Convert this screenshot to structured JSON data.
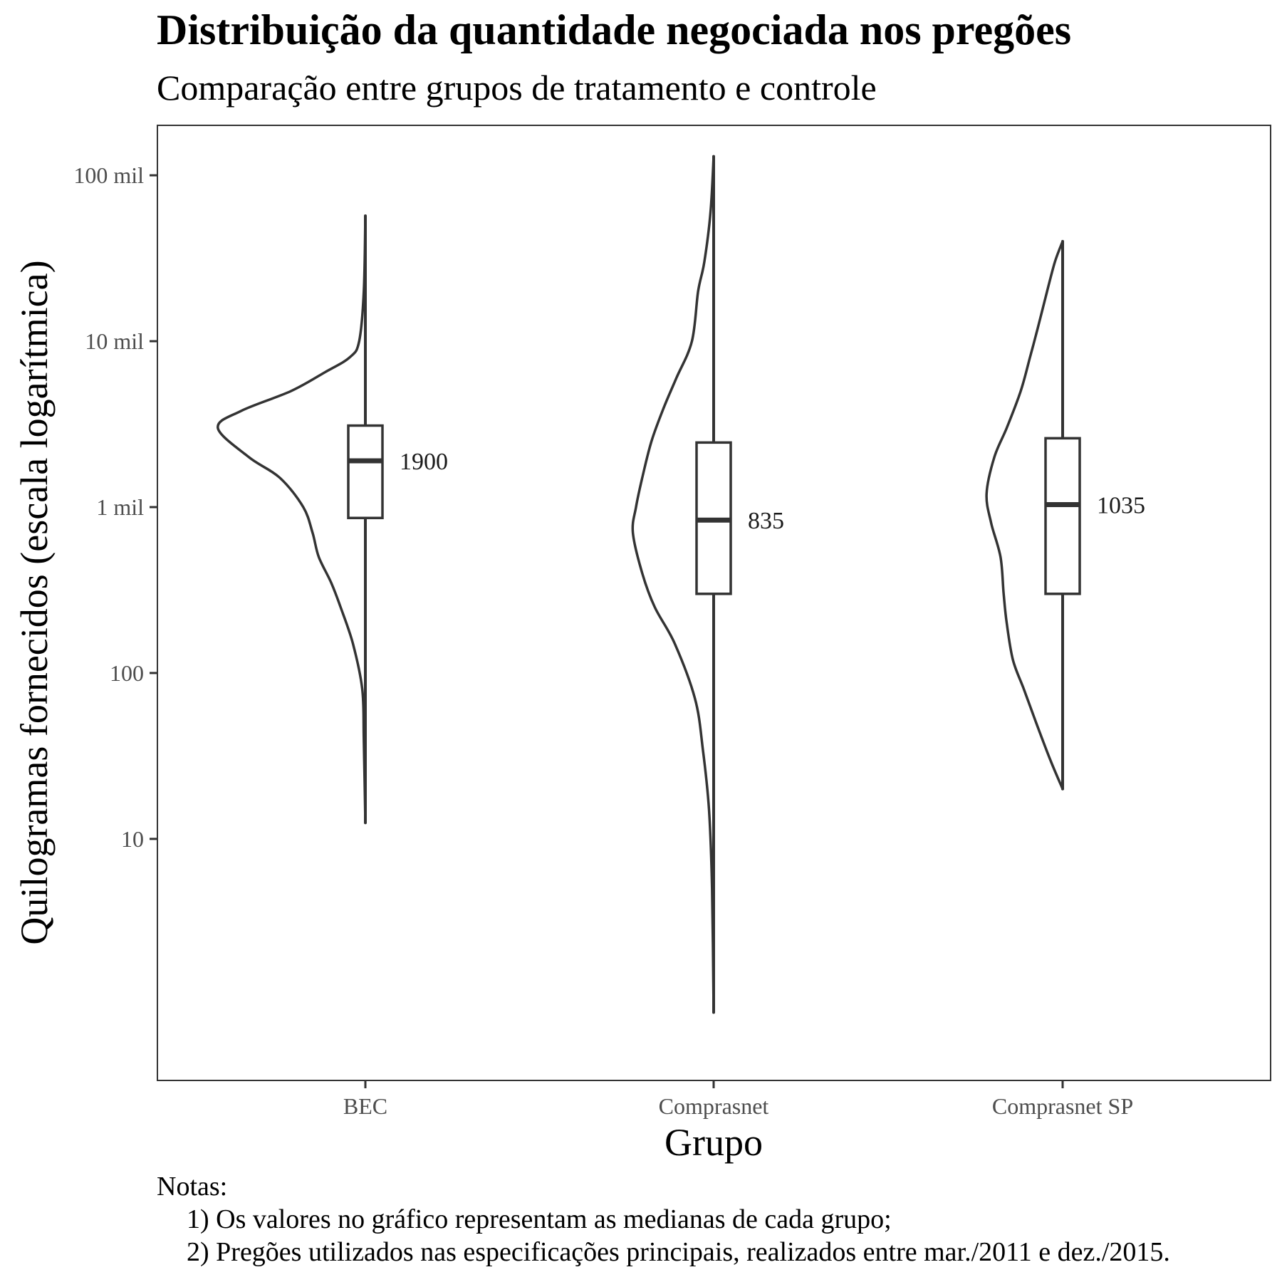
{
  "colors": {
    "stroke": "#333333",
    "text": "#000000",
    "tick_text": "#4d4d4d",
    "background": "#ffffff"
  },
  "chart_data": {
    "type": "violin-box",
    "title": "Distribuição da quantidade negociada nos pregões",
    "subtitle": "Comparação entre grupos de tratamento e controle",
    "xlabel": "Grupo",
    "ylabel": "Quilogramas fornecidos (escala logarítmica)",
    "y_scale": "log10",
    "ylim": [
      0.35,
      200000
    ],
    "y_ticks": [
      {
        "value": 10,
        "label": "10"
      },
      {
        "value": 100,
        "label": "100"
      },
      {
        "value": 1000,
        "label": "1 mil"
      },
      {
        "value": 10000,
        "label": "10 mil"
      },
      {
        "value": 100000,
        "label": "100 mil"
      }
    ],
    "grid": false,
    "legend": "none",
    "categories": [
      "BEC",
      "Comprasnet",
      "Comprasnet SP"
    ],
    "groups": [
      {
        "category": "BEC",
        "median_label": "1900",
        "median": 1900,
        "q1": 860,
        "q3": 3100,
        "whisker_low": 12.5,
        "whisker_high": 57000,
        "density_profile": [
          [
            12.5,
            0.0
          ],
          [
            40,
            0.01
          ],
          [
            80,
            0.02
          ],
          [
            150,
            0.08
          ],
          [
            250,
            0.16
          ],
          [
            350,
            0.22
          ],
          [
            500,
            0.3
          ],
          [
            700,
            0.34
          ],
          [
            1000,
            0.4
          ],
          [
            1500,
            0.55
          ],
          [
            2000,
            0.75
          ],
          [
            3000,
            0.95
          ],
          [
            3800,
            0.8
          ],
          [
            5000,
            0.48
          ],
          [
            6500,
            0.26
          ],
          [
            8000,
            0.1
          ],
          [
            10000,
            0.04
          ],
          [
            20000,
            0.01
          ],
          [
            57000,
            0.0
          ]
        ]
      },
      {
        "category": "Comprasnet",
        "median_label": "835",
        "median": 835,
        "q1": 300,
        "q3": 2450,
        "whisker_low": 0.9,
        "whisker_high": 130000,
        "density_profile": [
          [
            0.9,
            0.0
          ],
          [
            5,
            0.01
          ],
          [
            15,
            0.03
          ],
          [
            35,
            0.07
          ],
          [
            70,
            0.12
          ],
          [
            150,
            0.25
          ],
          [
            250,
            0.38
          ],
          [
            400,
            0.46
          ],
          [
            700,
            0.52
          ],
          [
            1000,
            0.5
          ],
          [
            1500,
            0.46
          ],
          [
            2500,
            0.4
          ],
          [
            4000,
            0.32
          ],
          [
            6000,
            0.24
          ],
          [
            10000,
            0.14
          ],
          [
            20000,
            0.1
          ],
          [
            30000,
            0.06
          ],
          [
            60000,
            0.02
          ],
          [
            130000,
            0.0
          ]
        ]
      },
      {
        "category": "Comprasnet SP",
        "median_label": "1035",
        "median": 1035,
        "q1": 300,
        "q3": 2600,
        "whisker_low": 20,
        "whisker_high": 40000,
        "density_profile": [
          [
            20,
            0.0
          ],
          [
            30,
            0.08
          ],
          [
            50,
            0.17
          ],
          [
            80,
            0.25
          ],
          [
            120,
            0.32
          ],
          [
            200,
            0.36
          ],
          [
            300,
            0.38
          ],
          [
            500,
            0.4
          ],
          [
            800,
            0.46
          ],
          [
            1200,
            0.49
          ],
          [
            2000,
            0.44
          ],
          [
            3000,
            0.36
          ],
          [
            5000,
            0.27
          ],
          [
            8000,
            0.21
          ],
          [
            12000,
            0.16
          ],
          [
            20000,
            0.1
          ],
          [
            30000,
            0.05
          ],
          [
            40000,
            0.0
          ]
        ]
      }
    ]
  },
  "notes": {
    "heading": "Notas:",
    "items": [
      "1) Os valores no gráfico representam as medianas de cada grupo;",
      "2) Pregões utilizados nas especificações principais, realizados entre mar./2011 e dez./2015."
    ]
  }
}
